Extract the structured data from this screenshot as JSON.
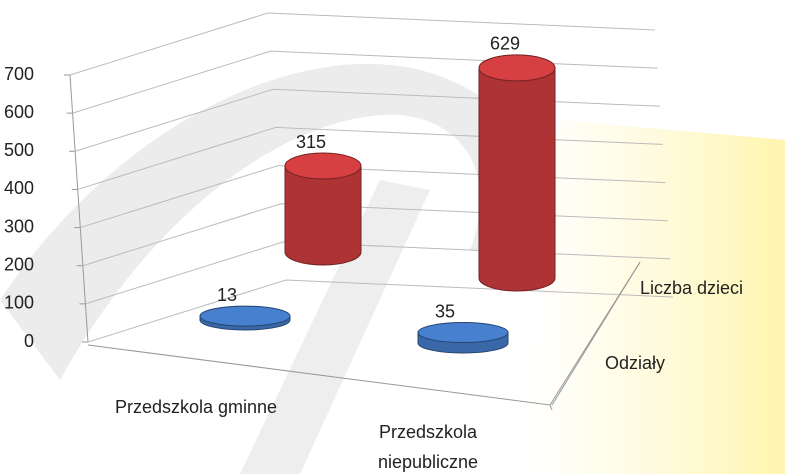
{
  "chart_data": {
    "type": "bar3d",
    "categories": [
      "Przedszkola gminne",
      "Przedszkola niepubliczne"
    ],
    "series": [
      {
        "name": "Odziały",
        "color": "#3f72b9",
        "values": [
          13,
          35
        ]
      },
      {
        "name": "Liczba dzieci",
        "color": "#c0393b",
        "values": [
          315,
          629
        ]
      }
    ],
    "ylim": [
      0,
      700
    ],
    "yticks": [
      0,
      100,
      200,
      300,
      400,
      500,
      600,
      700
    ],
    "grid": true
  }
}
